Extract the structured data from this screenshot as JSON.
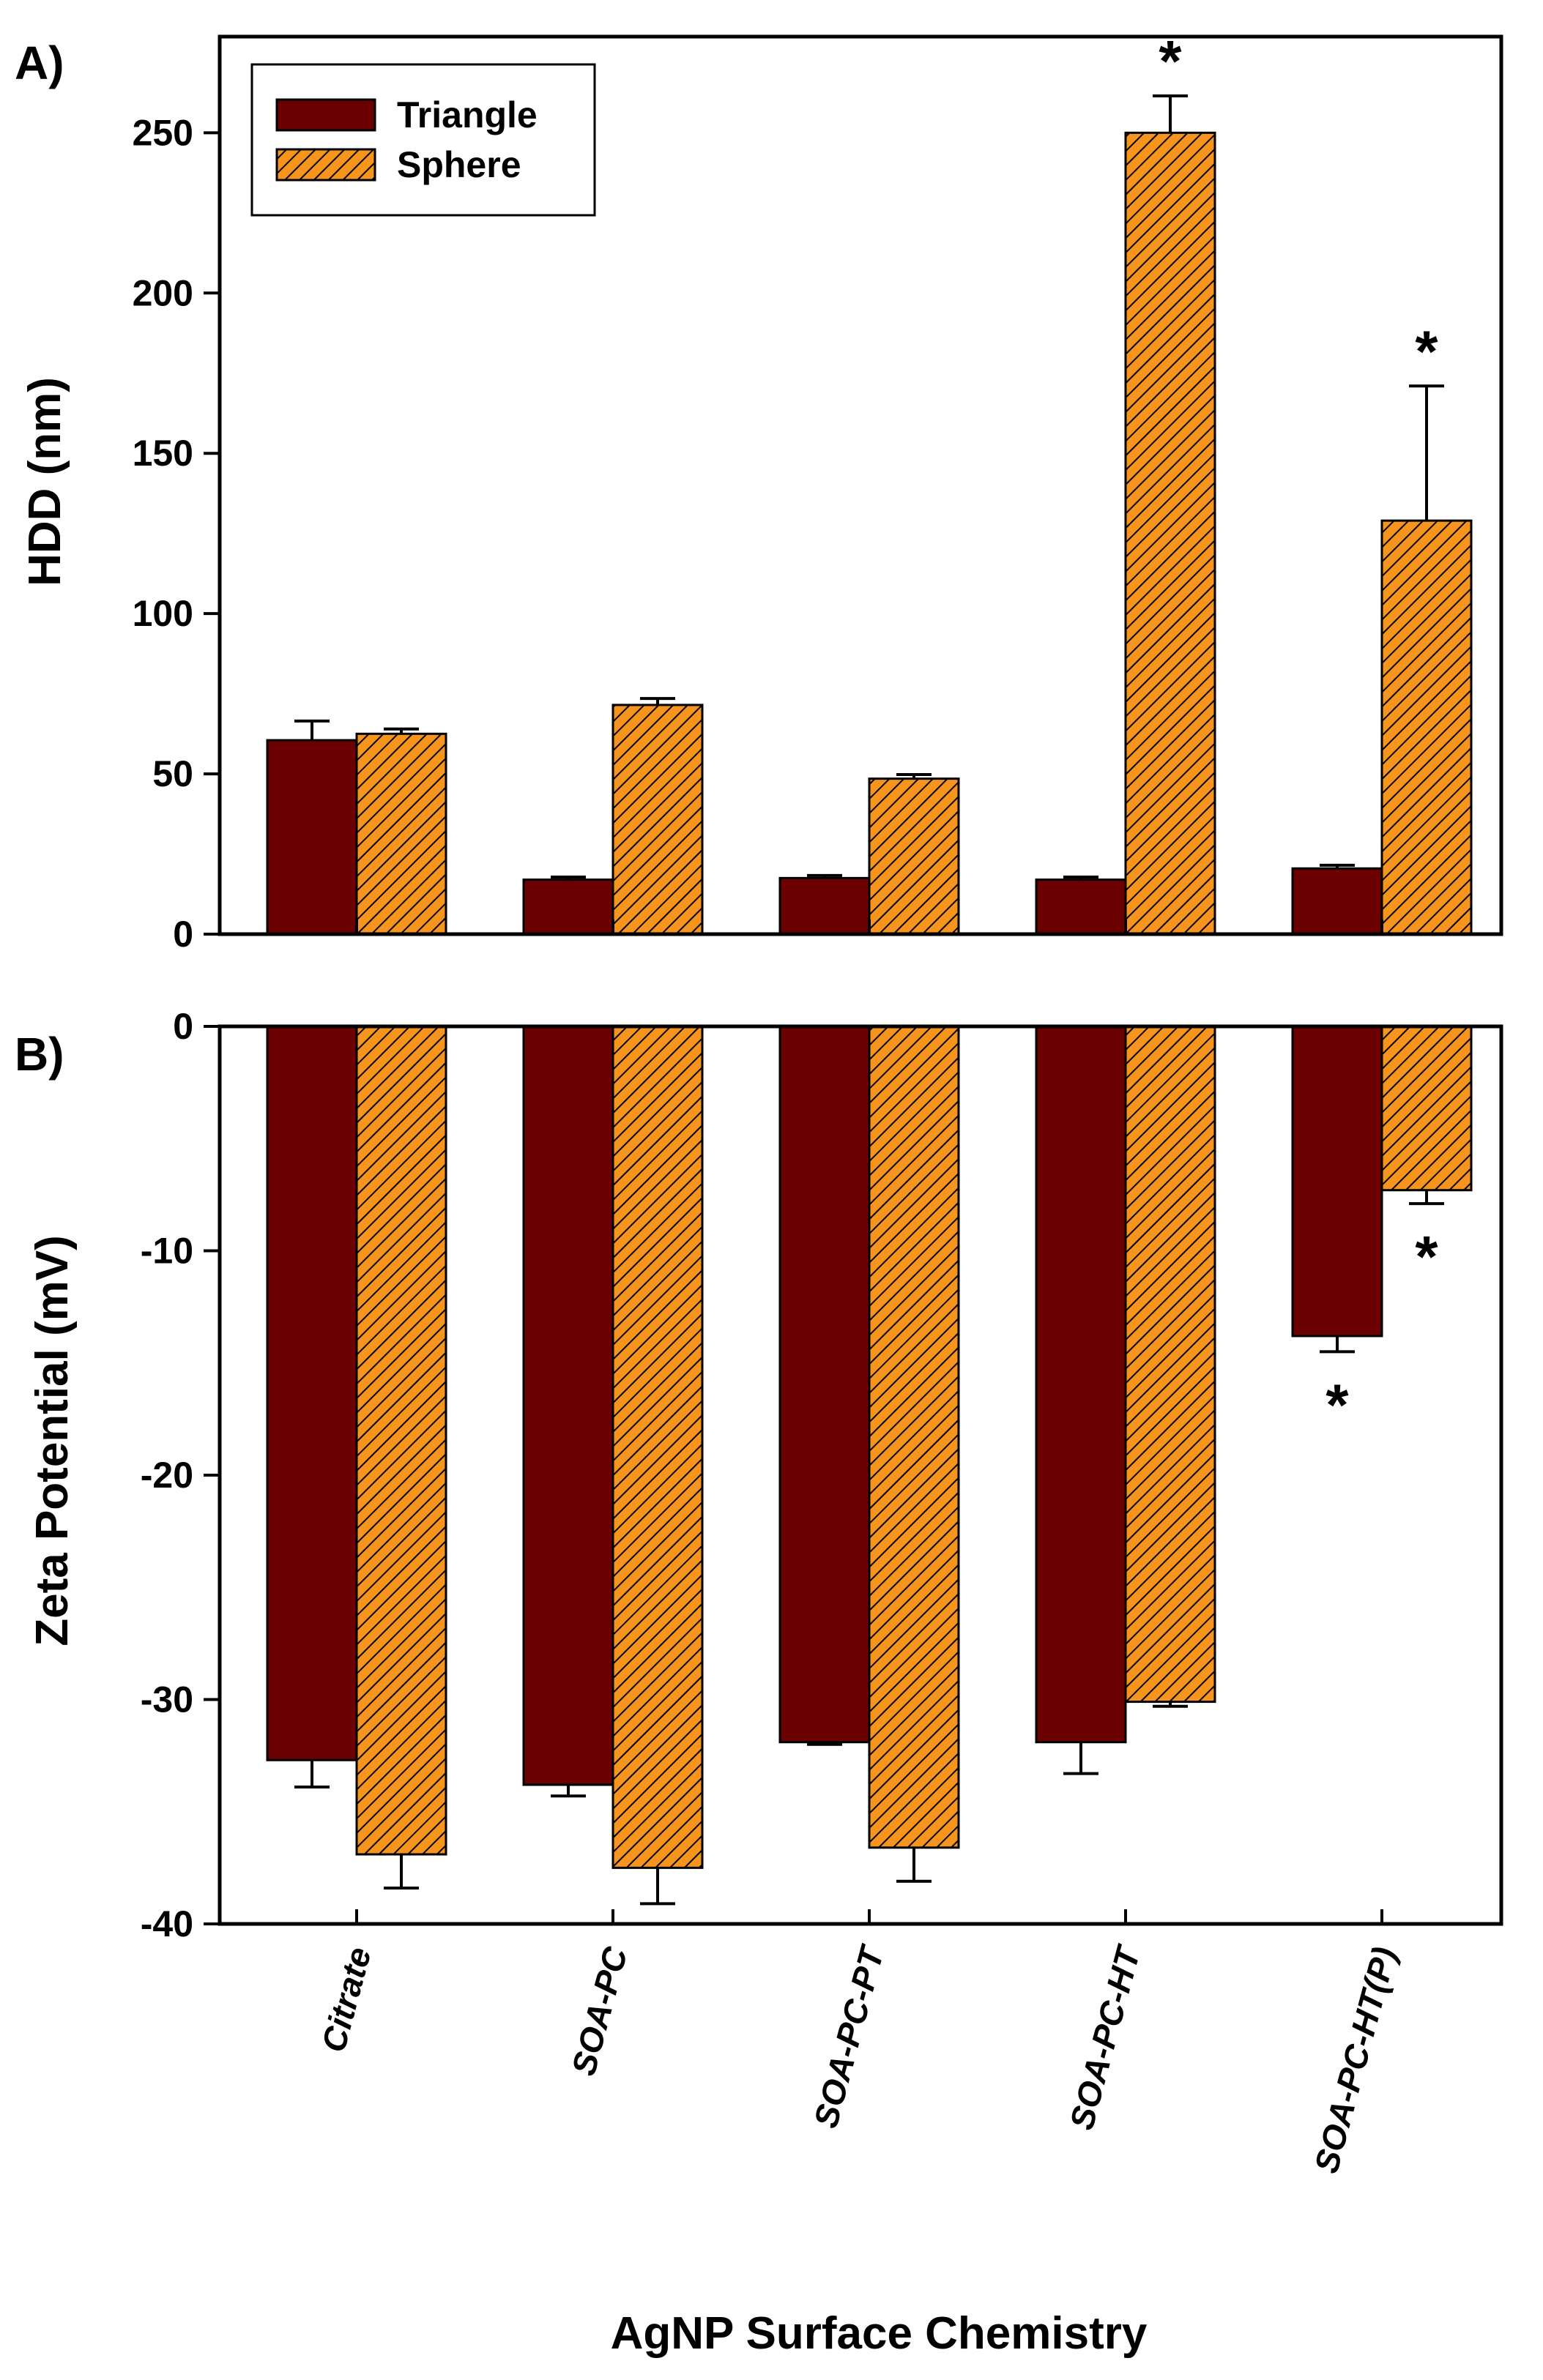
{
  "colors": {
    "triangle": "#6b0000",
    "sphere": "#f7941d",
    "hatch": "#000000",
    "axis": "#000000"
  },
  "xlabel": "AgNP Surface Chemistry",
  "legend": {
    "entries": [
      "Triangle",
      "Sphere"
    ],
    "placement": "top-left"
  },
  "chart_data": [
    {
      "type": "bar",
      "panel_label": "A)",
      "ylabel": "HDD (nm)",
      "ylim": [
        0,
        280
      ],
      "yticks": [
        0,
        50,
        100,
        150,
        200,
        250
      ],
      "categories": [
        "Citrate",
        "SOA-PC",
        "SOA-PC-PT",
        "SOA-PC-HT",
        "SOA-PC-HT(P)"
      ],
      "series": [
        {
          "name": "Triangle",
          "values": [
            60.5,
            17,
            17.5,
            17,
            20.5
          ],
          "errors": [
            6,
            0.8,
            0.8,
            0.8,
            1
          ]
        },
        {
          "name": "Sphere",
          "values": [
            62.5,
            71.5,
            48.5,
            250,
            129
          ],
          "errors": [
            1.5,
            2,
            1.3,
            11.5,
            42
          ]
        }
      ],
      "annotations": [
        {
          "text": "*",
          "category": "SOA-PC-HT",
          "series": "Sphere"
        },
        {
          "text": "*",
          "category": "SOA-PC-HT(P)",
          "series": "Sphere"
        }
      ],
      "grid": false
    },
    {
      "type": "bar",
      "panel_label": "B)",
      "ylabel": "Zeta Potential (mV)",
      "ylim": [
        -40,
        0
      ],
      "yticks": [
        0,
        -10,
        -20,
        -30,
        -40
      ],
      "categories": [
        "Citrate",
        "SOA-PC",
        "SOA-PC-PT",
        "SOA-PC-HT",
        "SOA-PC-HT(P)"
      ],
      "series": [
        {
          "name": "Triangle",
          "values": [
            -32.7,
            -33.8,
            -31.9,
            -31.9,
            -13.8
          ],
          "errors": [
            1.2,
            0.5,
            0.1,
            1.4,
            0.7
          ]
        },
        {
          "name": "Sphere",
          "values": [
            -36.9,
            -37.5,
            -36.6,
            -30.1,
            -7.3
          ],
          "errors": [
            1.5,
            1.6,
            1.5,
            0.2,
            0.6
          ]
        }
      ],
      "annotations": [
        {
          "text": "*",
          "category": "SOA-PC-HT(P)",
          "series": "Triangle"
        },
        {
          "text": "*",
          "category": "SOA-PC-HT(P)",
          "series": "Sphere"
        }
      ],
      "grid": false
    }
  ]
}
